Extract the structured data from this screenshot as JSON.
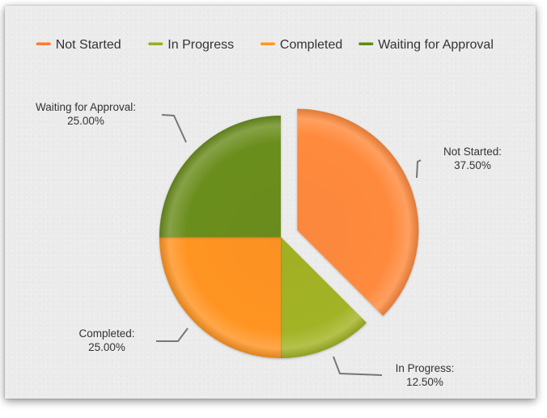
{
  "chart_data": {
    "type": "pie",
    "title": "",
    "legend_position": "top",
    "slices": [
      {
        "label": "Not Started",
        "value": 37.5,
        "percent_label": "37.50%",
        "color": "#ff8a3d",
        "exploded": true
      },
      {
        "label": "In Progress",
        "value": 12.5,
        "percent_label": "12.50%",
        "color": "#a3b325",
        "exploded": false
      },
      {
        "label": "Completed",
        "value": 25.0,
        "percent_label": "25.00%",
        "color": "#ff9421",
        "exploded": false
      },
      {
        "label": "Waiting for Approval",
        "value": 25.0,
        "percent_label": "25.00%",
        "color": "#6b8e1e",
        "exploded": false
      }
    ],
    "legend": [
      {
        "label": "Not Started",
        "color": "#ff7a33"
      },
      {
        "label": "In Progress",
        "color": "#9aae22"
      },
      {
        "label": "Completed",
        "color": "#ff9a1f"
      },
      {
        "label": "Waiting for Approval",
        "color": "#5e8a1a"
      }
    ]
  }
}
